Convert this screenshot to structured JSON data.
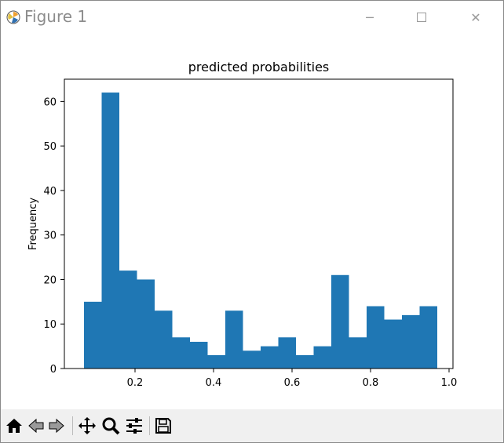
{
  "window": {
    "title": "Figure 1",
    "minimize_icon": "minimize-icon",
    "maximize_icon": "maximize-icon",
    "close_icon": "close-icon"
  },
  "toolbar": {
    "buttons": [
      "home-icon",
      "back-icon",
      "forward-icon",
      "pan-icon",
      "zoom-icon",
      "configure-subplots-icon",
      "save-icon"
    ]
  },
  "colors": {
    "bar": "#1f77b4",
    "toolbar_bg": "#f0f0f0"
  },
  "chart_data": {
    "type": "bar",
    "title": "predicted probabilities",
    "xlabel": "",
    "ylabel": "Frequency",
    "xlim": [
      0.02,
      1.01
    ],
    "ylim": [
      0,
      65
    ],
    "bin_edges": [
      0.07,
      0.115,
      0.16,
      0.205,
      0.25,
      0.295,
      0.34,
      0.385,
      0.43,
      0.475,
      0.52,
      0.565,
      0.61,
      0.655,
      0.7,
      0.745,
      0.79,
      0.835,
      0.88,
      0.925,
      0.97
    ],
    "values": [
      15,
      62,
      22,
      20,
      13,
      7,
      6,
      3,
      13,
      4,
      5,
      7,
      3,
      5,
      21,
      7,
      14,
      11,
      12,
      14
    ],
    "xticks": [
      0.2,
      0.4,
      0.6,
      0.8,
      1.0
    ],
    "xtick_labels": [
      "0.2",
      "0.4",
      "0.6",
      "0.8",
      "1.0"
    ],
    "yticks": [
      0,
      10,
      20,
      30,
      40,
      50,
      60
    ],
    "ytick_labels": [
      "0",
      "10",
      "20",
      "30",
      "40",
      "50",
      "60"
    ],
    "grid": false,
    "legend": "none"
  }
}
